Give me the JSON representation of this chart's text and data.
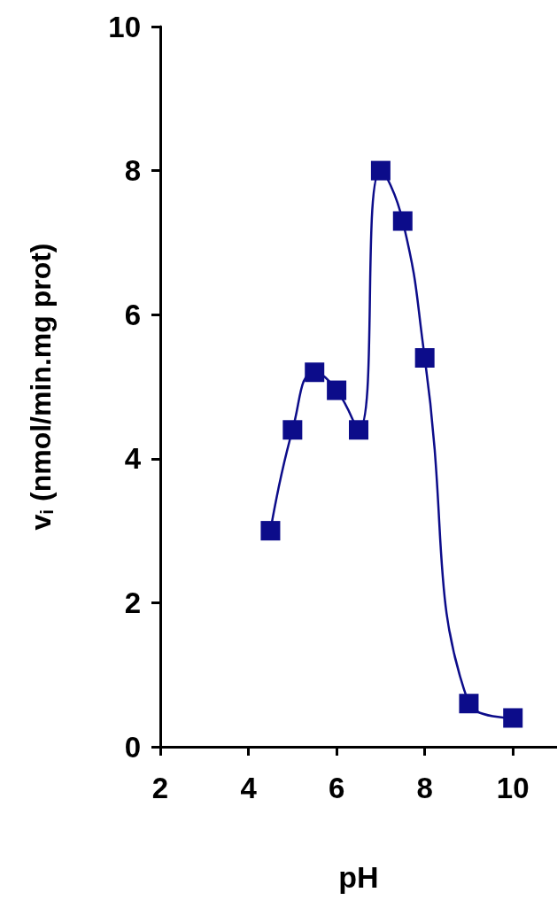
{
  "chart_data": {
    "type": "line",
    "xlabel": "pH",
    "ylabel": "v$_{i}$ (nmol/min.mg prot)",
    "x": [
      4.5,
      5,
      5.5,
      6,
      6.5,
      7,
      7.5,
      8,
      9,
      10
    ],
    "series": [
      {
        "color": "#0c0c8a",
        "values": [
          3.0,
          4.4,
          5.2,
          4.95,
          4.4,
          8.0,
          7.3,
          5.4,
          0.6,
          0.4
        ]
      }
    ],
    "xlim": [
      2,
      11
    ],
    "xticks": [
      2,
      4,
      6,
      8,
      10
    ],
    "ylim": [
      0,
      10
    ],
    "yticks": [
      0,
      2,
      4,
      6,
      8,
      10
    ],
    "grid": false,
    "marker": "square",
    "line_style": "solid"
  }
}
